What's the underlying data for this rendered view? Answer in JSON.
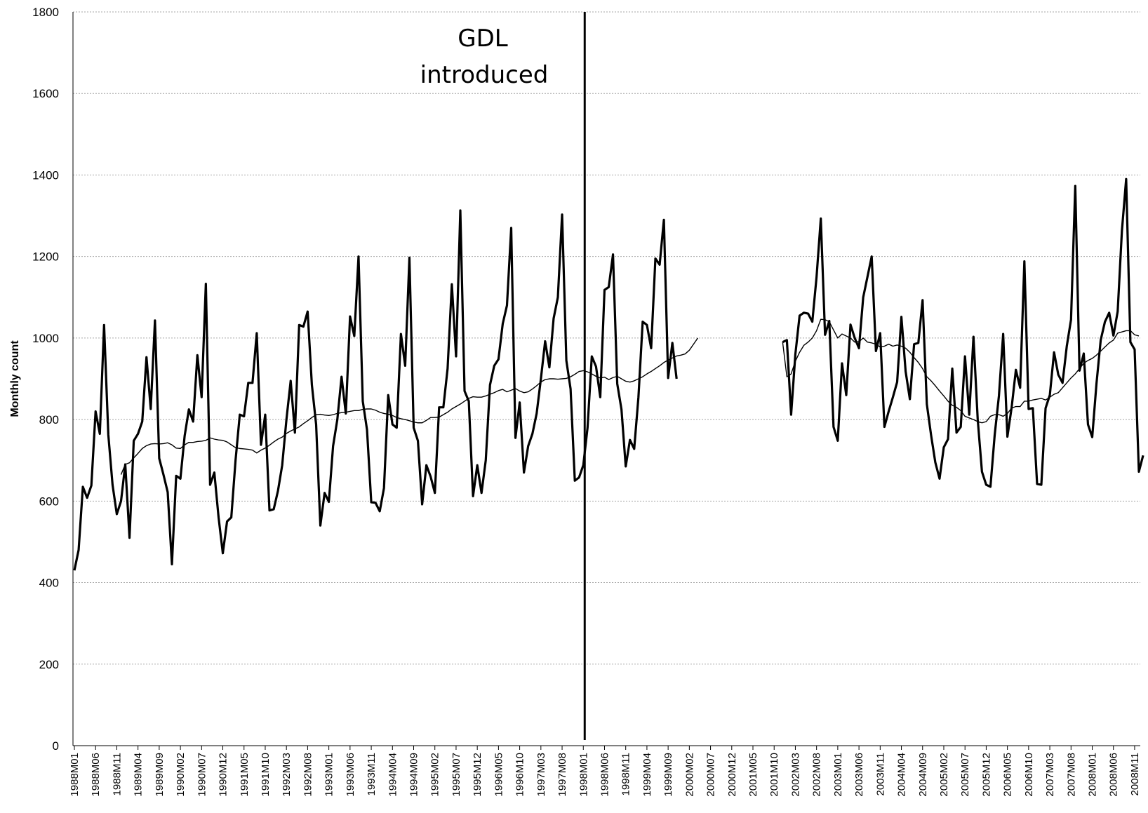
{
  "chart_data": {
    "type": "line",
    "xlabel": "",
    "ylabel": "Monthly count",
    "ylim": [
      0,
      1800
    ],
    "yticks": [
      "0",
      "200",
      "400",
      "600",
      "800",
      "1000",
      "1200",
      "1400",
      "1600",
      "1800"
    ],
    "grid": "horizontal dotted",
    "legend": "none",
    "x_range": [
      "1988M01",
      "2008M12"
    ],
    "x_tick_labels": [
      "1988M01",
      "1988M06",
      "1988M11",
      "1989M04",
      "1989M09",
      "1990M02",
      "1990M07",
      "1990M12",
      "1991M05",
      "1991M10",
      "1992M03",
      "1992M08",
      "1993M01",
      "1993M06",
      "1993M11",
      "1994M04",
      "1994M09",
      "1995M02",
      "1995M07",
      "1995M12",
      "1996M05",
      "1996M10",
      "1997M03",
      "1997M08",
      "1998M01",
      "1998M06",
      "1998M11",
      "1999M04",
      "1999M09",
      "2000M02",
      "2000M07",
      "2000M12",
      "2001M05",
      "2001M10",
      "2002M03",
      "2002M08",
      "2003M01",
      "2003M06",
      "2003M11",
      "2004M04",
      "2004M09",
      "2005M02",
      "2005M07",
      "2005M12",
      "2006M05",
      "2006M10",
      "2007M03",
      "2007M08",
      "2008M01",
      "2008M06",
      "2008M11"
    ],
    "annotation": {
      "lines": [
        "GDL",
        "introduced"
      ],
      "x": "1998M01"
    },
    "series": [
      {
        "style": "thick",
        "segments": [
          {
            "start": "1988M01",
            "values": [
              430,
              480,
              635,
              608,
              638,
              820,
              765,
              1032,
              763,
              640,
              568,
              600,
              690,
              510,
              748,
              765,
              795,
              953,
              826,
              1043,
              705,
              665,
              622,
              445,
              662,
              655,
              760,
              825,
              795,
              958,
              855,
              1133,
              640,
              670,
              560,
              472,
              550,
              560,
              700,
              812,
              808,
              890,
              890,
              1012,
              738,
              812,
              577,
              580,
              625,
              688,
              800,
              895,
              768,
              1032,
              1028,
              1065,
              885,
              788,
              540,
              620,
              598,
              735,
              800,
              905,
              815,
              1053,
              1005,
              1200,
              845,
              775,
              597,
              596,
              575,
              632,
              860,
              788,
              780,
              1010,
              932,
              1197,
              780,
              748,
              592,
              688,
              660,
              620,
              830,
              830,
              925,
              1132,
              955,
              1313,
              870,
              845,
              612,
              688,
              620,
              700,
              885,
              932,
              948,
              1035,
              1080,
              1270,
              755,
              842,
              670,
              735,
              765,
              815,
              900,
              992,
              928,
              1048,
              1100,
              1303,
              945,
              875,
              650,
              658,
              688,
              780,
              955,
              930,
              855,
              1118,
              1125,
              1205,
              888,
              825,
              685,
              750,
              728,
              855,
              1040,
              1032,
              975,
              1195,
              1180,
              1290,
              902,
              988,
              900
            ]
          },
          {
            "start": "2001M12",
            "values": [
              990,
              995,
              812,
              960,
              1055,
              1062,
              1060,
              1040,
              1150,
              1293,
              1008,
              1042,
              782,
              748,
              938,
              860,
              1033,
              1000,
              975,
              1100,
              1150,
              1200,
              968,
              1012,
              782,
              820,
              855,
              892,
              1052,
              918,
              850,
              985,
              988,
              1093,
              838,
              762,
              695,
              655,
              732,
              752,
              925,
              768,
              782,
              955,
              812,
              1003,
              800,
              672,
              640,
              635,
              762,
              858,
              1010,
              758,
              830,
              922,
              878,
              1188,
              826,
              828,
              642,
              640,
              828,
              860,
              965,
              910,
              890,
              980,
              1045,
              1373,
              920,
              962,
              788,
              757,
              888,
              995,
              1040,
              1062,
              1006,
              1065,
              1263,
              1390,
              990,
              972,
              672,
              712
            ]
          }
        ]
      },
      {
        "style": "thin",
        "segments": [
          {
            "start": "1988M12",
            "values": [
              665,
              690,
              694,
              706,
              717,
              729,
              736,
              740,
              741,
              740,
              741,
              743,
              738,
              730,
              729,
              738,
              744,
              744,
              746,
              747,
              749,
              755,
              752,
              750,
              749,
              745,
              738,
              731,
              729,
              728,
              727,
              725,
              718,
              725,
              730,
              737,
              745,
              752,
              757,
              766,
              772,
              777,
              782,
              790,
              797,
              805,
              812,
              813,
              811,
              810,
              812,
              815,
              817,
              818,
              820,
              822,
              822,
              825,
              826,
              826,
              823,
              818,
              815,
              813,
              810,
              805,
              802,
              800,
              797,
              794,
              792,
              792,
              798,
              805,
              805,
              806,
              812,
              818,
              826,
              832,
              838,
              845,
              852,
              856,
              855,
              855,
              858,
              862,
              866,
              871,
              874,
              868,
              872,
              876,
              870,
              866,
              868,
              875,
              883,
              892,
              898,
              900,
              900,
              899,
              900,
              901,
              905,
              911,
              918,
              920,
              917,
              912,
              906,
              902,
              904,
              898,
              903,
              906,
              900,
              894,
              892,
              895,
              900,
              905,
              912,
              918,
              925,
              932,
              940,
              946,
              951,
              956,
              958,
              961,
              970,
              985,
              1000
            ]
          },
          {
            "start": "2001M12",
            "values": [
              990,
              905,
              912,
              943,
              965,
              982,
              990,
              1000,
              1018,
              1046,
              1045,
              1040,
              1020,
              1000,
              1010,
              1005,
              1000,
              990,
              991,
              1000,
              990,
              988,
              985,
              978,
              980,
              985,
              980,
              983,
              980,
              975,
              965,
              952,
              940,
              925,
              905,
              895,
              883,
              870,
              858,
              845,
              835,
              830,
              822,
              808,
              804,
              800,
              795,
              792,
              795,
              808,
              812,
              812,
              808,
              815,
              828,
              832,
              832,
              845,
              845,
              848,
              850,
              852,
              848,
              855,
              862,
              866,
              878,
              890,
              902,
              912,
              925,
              938,
              945,
              950,
              958,
              968,
              978,
              988,
              995,
              1012,
              1015,
              1018,
              1018,
              1008,
              1005
            ]
          }
        ]
      }
    ]
  }
}
